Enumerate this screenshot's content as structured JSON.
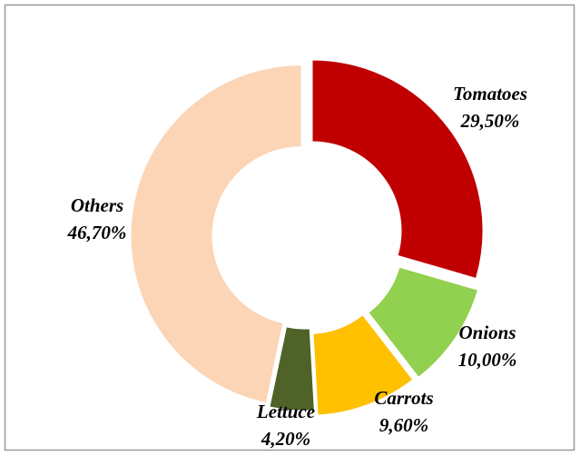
{
  "chart_data": {
    "type": "donut",
    "categories": [
      "Tomatoes",
      "Onions",
      "Carrots",
      "Lettuce",
      "Others"
    ],
    "values": [
      29.5,
      10.0,
      9.6,
      4.2,
      46.7
    ],
    "value_labels": [
      "29,50%",
      "10,00%",
      "9,60%",
      "4,20%",
      "46,70%"
    ],
    "colors": [
      "#c00000",
      "#92d050",
      "#ffc000",
      "#4f6228",
      "#fbd5b5"
    ]
  }
}
